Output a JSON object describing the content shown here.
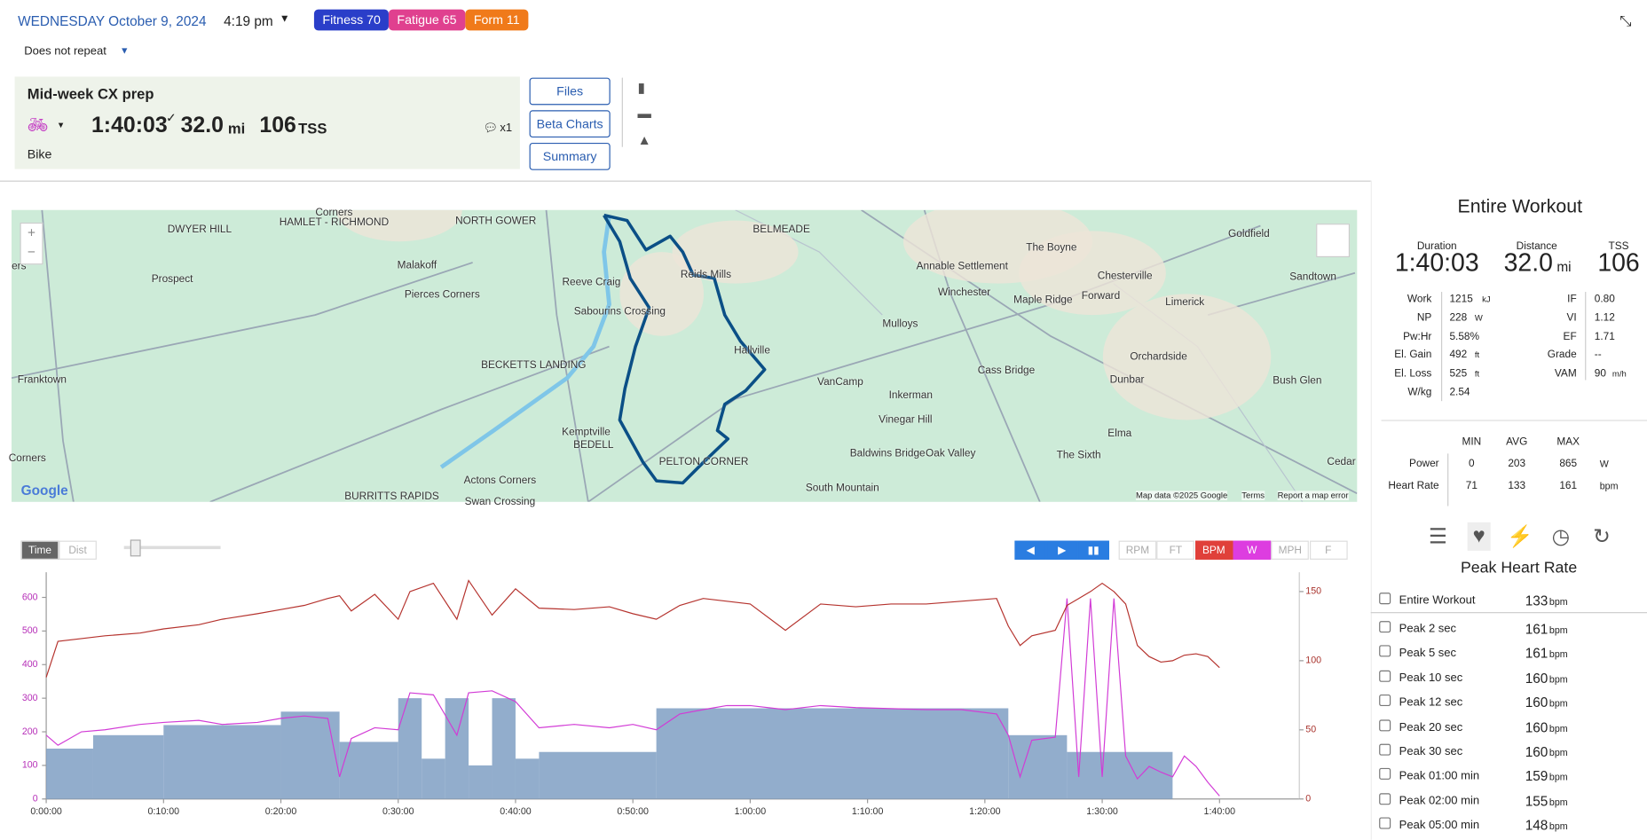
{
  "header": {
    "date": "WEDNESDAY October 9, 2024",
    "time": "4:19 pm",
    "badges": [
      "Fitness 70",
      "Fatigue 65",
      "Form 11"
    ],
    "repeat": "Does not repeat"
  },
  "workout": {
    "title": "Mid-week CX prep",
    "duration": "1:40:03",
    "distance": "32.0",
    "distance_unit": "mi",
    "tss": "106",
    "tss_unit": "TSS",
    "comments": "x1",
    "sport": "Bike"
  },
  "buttons": [
    "Files",
    "Beta Charts",
    "Summary"
  ],
  "map": {
    "labels": [
      "Corners",
      "HAMLET - RICHMOND",
      "DWYER HILL",
      "NORTH GOWER",
      "BELMEADE",
      "Goldfield",
      "The Boyne",
      "Annable Settlement",
      "Chesterville",
      "Sandtown",
      "Prospect",
      "Malakoff",
      "Reeve Craig",
      "Reids Mills",
      "Winchester",
      "Maple Ridge",
      "Forward",
      "Limerick",
      "Pierces Corners",
      "Sabourins Crossing",
      "Mulloys",
      "Franktown",
      "BECKETTS LANDING",
      "Hallville",
      "Orchardside",
      "Cass Bridge",
      "VanCamp",
      "Bush Glen",
      "Dunbar",
      "Inkerman",
      "Vinegar Hill",
      "Kemptville",
      "BEDELL",
      "PELTON CORNER",
      "Elma",
      "Baldwins Bridge",
      "Oak Valley",
      "The Sixth",
      "Cedar",
      "Corners",
      "Actons Corners",
      "South Mountain",
      "BURRITTS RAPIDS",
      "Swan Crossing",
      "ers"
    ],
    "footer": [
      "Map data ©2025 Google",
      "Terms",
      "Report a map error"
    ],
    "logo": "Google"
  },
  "toolbar": {
    "modes": [
      "Time",
      "Dist"
    ],
    "channels": [
      "RPM",
      "FT",
      "BPM",
      "W",
      "MPH",
      "F"
    ]
  },
  "chart_data": {
    "type": "line",
    "xlim": [
      0,
      106.8
    ],
    "xticks": [
      {
        "value": 0,
        "label": "0:00:00"
      },
      {
        "value": 10,
        "label": "0:10:00"
      },
      {
        "value": 20,
        "label": "0:20:00"
      },
      {
        "value": 30,
        "label": "0:30:00"
      },
      {
        "value": 40,
        "label": "0:40:00"
      },
      {
        "value": 50,
        "label": "0:50:00"
      },
      {
        "value": 60,
        "label": "1:00:00"
      },
      {
        "value": 70,
        "label": "1:10:00"
      },
      {
        "value": 80,
        "label": "1:20:00"
      },
      {
        "value": 90,
        "label": "1:30:00"
      },
      {
        "value": 100,
        "label": "1:40:00"
      }
    ],
    "ylim": [
      0,
      675
    ],
    "yticks": [
      0,
      100,
      200,
      300,
      400,
      500,
      600
    ],
    "y2lim": [
      0,
      164
    ],
    "y2ticks": [
      0,
      50,
      100,
      150
    ],
    "x": [
      0,
      1,
      3,
      5,
      8,
      10,
      13,
      15,
      18,
      20,
      22,
      24,
      25,
      26,
      28,
      30,
      31,
      33,
      35,
      36,
      38,
      40,
      42,
      45,
      48,
      50,
      52,
      54,
      56,
      58,
      60,
      63,
      66,
      69,
      72,
      75,
      78,
      81,
      82,
      83,
      84,
      86,
      87,
      88,
      89,
      90,
      91,
      92,
      93,
      94,
      95,
      96,
      97,
      98,
      99,
      100
    ],
    "series": [
      {
        "color": "#d23bd6",
        "values": [
          190,
          160,
          200,
          206,
          222,
          228,
          234,
          222,
          228,
          240,
          247,
          240,
          66,
          180,
          212,
          206,
          316,
          310,
          190,
          316,
          322,
          290,
          212,
          222,
          212,
          222,
          206,
          253,
          266,
          278,
          278,
          266,
          278,
          272,
          269,
          266,
          266,
          253,
          190,
          66,
          175,
          184,
          597,
          66,
          597,
          66,
          597,
          128,
          60,
          97,
          80,
          66,
          128,
          97,
          50,
          9
        ]
      },
      {
        "color": "#b5332e",
        "axis": "y2",
        "values": [
          88,
          114,
          116,
          118,
          120,
          123,
          126,
          130,
          134,
          137,
          140,
          145,
          147,
          136,
          148,
          130,
          150,
          156,
          130,
          158,
          133,
          152,
          138,
          137,
          139,
          134,
          130,
          140,
          145,
          143,
          141,
          122,
          141,
          139,
          141,
          141,
          143,
          145,
          125,
          111,
          118,
          122,
          140,
          145,
          150,
          156,
          150,
          141,
          111,
          103,
          99,
          100,
          104,
          105,
          103,
          95
        ]
      }
    ],
    "planned": {
      "color": "#7f9fc3",
      "bins": [
        0,
        4,
        10,
        20,
        25,
        30,
        32,
        34,
        36,
        38,
        40,
        42,
        52,
        82,
        87,
        96
      ],
      "values": [
        150,
        190,
        220,
        260,
        170,
        300,
        120,
        300,
        100,
        300,
        120,
        140,
        270,
        190,
        140
      ]
    }
  },
  "summary": {
    "title": "Entire Workout",
    "stats": [
      {
        "label": "Duration",
        "value": "1:40:03"
      },
      {
        "label": "Distance",
        "value": "32.0",
        "unit": "mi"
      },
      {
        "label": "TSS",
        "value": "106"
      }
    ],
    "metrics_left": [
      {
        "label": "Work",
        "value": "1215",
        "unit": "kJ"
      },
      {
        "label": "NP",
        "value": "228",
        "unit": "W"
      },
      {
        "label": "Pw:Hr",
        "value": "5.58%"
      },
      {
        "label": "El. Gain",
        "value": "492",
        "unit": "ft"
      },
      {
        "label": "El. Loss",
        "value": "525",
        "unit": "ft"
      },
      {
        "label": "W/kg",
        "value": "2.54"
      }
    ],
    "metrics_right": [
      {
        "label": "IF",
        "value": "0.80"
      },
      {
        "label": "VI",
        "value": "1.12"
      },
      {
        "label": "EF",
        "value": "1.71"
      },
      {
        "label": "Grade",
        "value": "--"
      },
      {
        "label": "VAM",
        "value": "90",
        "unit": "m/h"
      }
    ],
    "minmax": {
      "headers": [
        "MIN",
        "AVG",
        "MAX"
      ],
      "rows": [
        {
          "label": "Power",
          "values": [
            0,
            203,
            865
          ],
          "unit": "W"
        },
        {
          "label": "Heart Rate",
          "values": [
            71,
            133,
            161
          ],
          "unit": "bpm"
        }
      ]
    }
  },
  "peaks": {
    "title": "Peak Heart Rate",
    "rows": [
      {
        "name": "Entire Workout",
        "value": 133,
        "unit": "bpm"
      },
      {
        "name": "Peak 2 sec",
        "value": 161,
        "unit": "bpm"
      },
      {
        "name": "Peak 5 sec",
        "value": 161,
        "unit": "bpm"
      },
      {
        "name": "Peak 10 sec",
        "value": 160,
        "unit": "bpm"
      },
      {
        "name": "Peak 12 sec",
        "value": 160,
        "unit": "bpm"
      },
      {
        "name": "Peak 20 sec",
        "value": 160,
        "unit": "bpm"
      },
      {
        "name": "Peak 30 sec",
        "value": 160,
        "unit": "bpm"
      },
      {
        "name": "Peak 01:00 min",
        "value": 159,
        "unit": "bpm"
      },
      {
        "name": "Peak 02:00 min",
        "value": 155,
        "unit": "bpm"
      },
      {
        "name": "Peak 05:00 min",
        "value": 148,
        "unit": "bpm"
      }
    ]
  }
}
